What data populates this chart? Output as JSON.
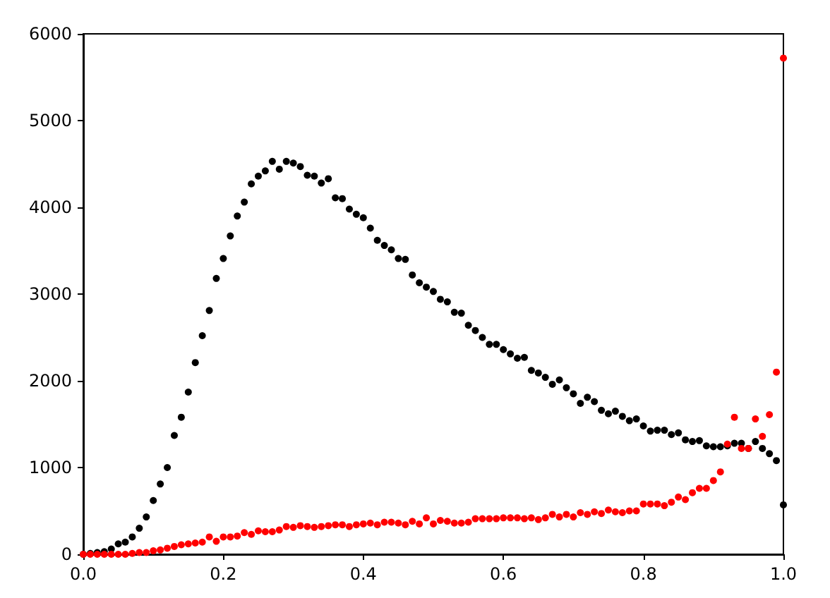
{
  "chart_data": {
    "type": "scatter",
    "marker": "circle",
    "grid": false,
    "x": [
      0,
      0.01,
      0.02,
      0.03,
      0.04,
      0.05,
      0.06,
      0.07,
      0.08,
      0.09,
      0.1,
      0.11,
      0.12,
      0.13,
      0.14,
      0.15,
      0.16,
      0.17,
      0.18,
      0.19,
      0.2,
      0.21,
      0.22,
      0.23,
      0.24,
      0.25,
      0.26,
      0.27,
      0.28,
      0.29,
      0.3,
      0.31,
      0.32,
      0.33,
      0.34,
      0.35,
      0.36,
      0.37,
      0.38,
      0.39,
      0.4,
      0.41,
      0.42,
      0.43,
      0.44,
      0.45,
      0.46,
      0.47,
      0.48,
      0.49,
      0.5,
      0.51,
      0.52,
      0.53,
      0.54,
      0.55,
      0.56,
      0.57,
      0.58,
      0.59,
      0.6,
      0.61,
      0.62,
      0.63,
      0.64,
      0.65,
      0.66,
      0.67,
      0.68,
      0.69,
      0.7,
      0.71,
      0.72,
      0.73,
      0.74,
      0.75,
      0.76,
      0.77,
      0.78,
      0.79,
      0.8,
      0.81,
      0.82,
      0.83,
      0.84,
      0.85,
      0.86,
      0.87,
      0.88,
      0.89,
      0.9,
      0.91,
      0.92,
      0.93,
      0.94,
      0.95,
      0.96,
      0.97,
      0.98,
      0.99,
      1
    ],
    "series": [
      {
        "color": "#000000",
        "values": [
          0,
          10,
          20,
          30,
          60,
          120,
          140,
          200,
          300,
          430,
          620,
          810,
          1000,
          1370,
          1580,
          1870,
          2210,
          2520,
          2810,
          3180,
          3410,
          3670,
          3900,
          4060,
          4270,
          4360,
          4420,
          4530,
          4440,
          4530,
          4510,
          4470,
          4370,
          4360,
          4280,
          4330,
          4110,
          4100,
          3980,
          3920,
          3880,
          3760,
          3620,
          3560,
          3510,
          3410,
          3400,
          3220,
          3130,
          3080,
          3030,
          2940,
          2910,
          2790,
          2780,
          2640,
          2580,
          2500,
          2420,
          2420,
          2360,
          2310,
          2260,
          2270,
          2120,
          2090,
          2040,
          1960,
          2010,
          1920,
          1850,
          1740,
          1810,
          1760,
          1660,
          1620,
          1650,
          1590,
          1540,
          1560,
          1480,
          1420,
          1430,
          1430,
          1380,
          1400,
          1320,
          1300,
          1310,
          1250,
          1240,
          1240,
          1250,
          1280,
          1280,
          1220,
          1300,
          1220,
          1160,
          1080,
          570
        ]
      },
      {
        "color": "#ff0000",
        "values": [
          0,
          0,
          0,
          0,
          0,
          0,
          0,
          10,
          20,
          20,
          40,
          50,
          70,
          90,
          110,
          120,
          130,
          140,
          200,
          150,
          200,
          200,
          210,
          250,
          230,
          270,
          260,
          260,
          280,
          320,
          310,
          330,
          320,
          310,
          320,
          330,
          340,
          340,
          320,
          340,
          350,
          360,
          340,
          370,
          370,
          360,
          340,
          380,
          350,
          420,
          350,
          390,
          380,
          360,
          360,
          370,
          410,
          410,
          410,
          410,
          420,
          420,
          420,
          410,
          420,
          400,
          420,
          460,
          430,
          460,
          430,
          480,
          460,
          490,
          470,
          510,
          490,
          480,
          500,
          500,
          580,
          580,
          580,
          560,
          600,
          660,
          630,
          710,
          760,
          760,
          850,
          950,
          1270,
          1580,
          1220,
          1220,
          1560,
          1360,
          1610,
          2100,
          5720
        ]
      }
    ],
    "xlim": [
      0,
      1
    ],
    "xticks": [
      {
        "value": 0,
        "label": "0.0"
      },
      {
        "value": 0.2,
        "label": "0.2"
      },
      {
        "value": 0.4,
        "label": "0.4"
      },
      {
        "value": 0.6,
        "label": "0.6"
      },
      {
        "value": 0.8,
        "label": "0.8"
      },
      {
        "value": 1,
        "label": "1.0"
      }
    ],
    "ylim": [
      0,
      6000
    ],
    "yticks": [
      0,
      1000,
      2000,
      3000,
      4000,
      5000,
      6000
    ]
  }
}
